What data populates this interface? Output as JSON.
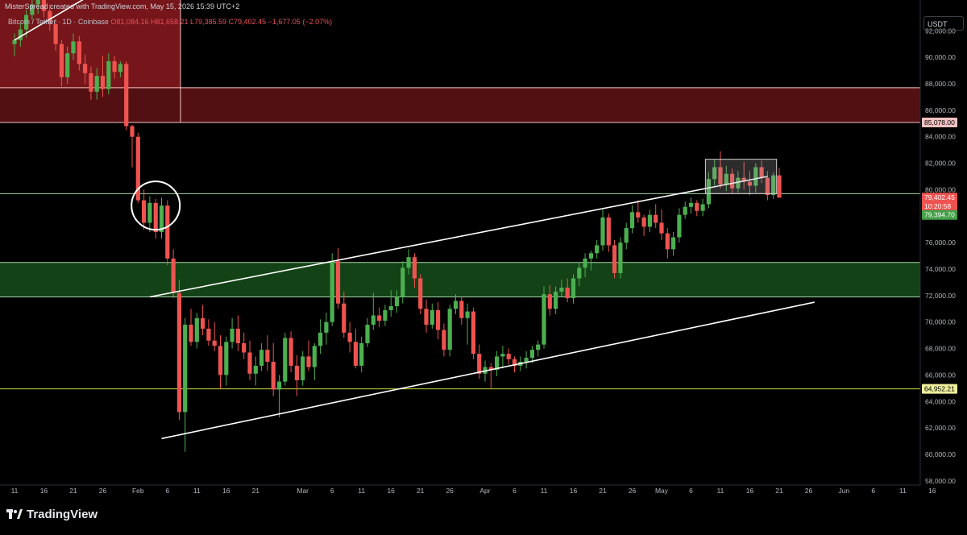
{
  "header": {
    "credit": "MisterSpread created with TradingView.com, May 15, 2026 15:39 UTC+2",
    "symbol": "Bitcoin / Tether · 1D · Coinbase",
    "ohlc": "O81,084.16 H81,658.21 L79,385.59 C79,402.45 −1,677.05 (−2.07%)"
  },
  "currency_button": "USDT",
  "brand": "TradingView",
  "colors": {
    "background": "#000000",
    "up": "#4caf50",
    "down": "#ef5350",
    "supply_zone": "#8b1a1f",
    "demand_zone": "#1b5e20",
    "level_line_red": "#f5c6c6",
    "level_line_green": "#a5d6a7",
    "level_line_yellow": "#cddc39",
    "trendline": "#ffffff"
  },
  "price_labels": {
    "resistance": "85,078.00",
    "last_close": "79,402.45",
    "countdown": "10:20:58",
    "bid": "79,394.70",
    "support": "64,952.21"
  },
  "chart_data": {
    "type": "candlestick",
    "title": "",
    "timeframe": "1D",
    "exchange": "Coinbase",
    "ylim": [
      57000,
      95500
    ],
    "y_ticks": [
      58000,
      60000,
      62000,
      64000,
      66000,
      68000,
      70000,
      72000,
      74000,
      76000,
      78000,
      80000,
      82000,
      84000,
      86000,
      88000,
      90000,
      92000
    ],
    "y_tick_labels": [
      "58,000.00",
      "60,000.00",
      "62,000.00",
      "64,000.00",
      "66,000.00",
      "68,000.00",
      "70,000.00",
      "72,000.00",
      "74,000.00",
      "76,000.00",
      "78,000.00",
      "80,000.00",
      "82,000.00",
      "84,000.00",
      "86,000.00",
      "88,000.00",
      "90,000.00",
      "92,000.00"
    ],
    "x_axis_labels": [
      {
        "day": 0,
        "text": "11"
      },
      {
        "day": 5,
        "text": "16"
      },
      {
        "day": 10,
        "text": "21"
      },
      {
        "day": 15,
        "text": "26"
      },
      {
        "day": 21,
        "text": "Feb"
      },
      {
        "day": 26,
        "text": "6"
      },
      {
        "day": 31,
        "text": "11"
      },
      {
        "day": 36,
        "text": "16"
      },
      {
        "day": 41,
        "text": "21"
      },
      {
        "day": 49,
        "text": "Mar"
      },
      {
        "day": 54,
        "text": "6"
      },
      {
        "day": 59,
        "text": "11"
      },
      {
        "day": 64,
        "text": "16"
      },
      {
        "day": 69,
        "text": "21"
      },
      {
        "day": 74,
        "text": "26"
      },
      {
        "day": 80,
        "text": "Apr"
      },
      {
        "day": 85,
        "text": "6"
      },
      {
        "day": 90,
        "text": "11"
      },
      {
        "day": 95,
        "text": "16"
      },
      {
        "day": 100,
        "text": "21"
      },
      {
        "day": 105,
        "text": "26"
      },
      {
        "day": 110,
        "text": "May"
      },
      {
        "day": 115,
        "text": "6"
      },
      {
        "day": 120,
        "text": "11"
      },
      {
        "day": 125,
        "text": "16"
      },
      {
        "day": 130,
        "text": "21"
      },
      {
        "day": 135,
        "text": "26"
      },
      {
        "day": 141,
        "text": "Jun"
      },
      {
        "day": 146,
        "text": "6"
      },
      {
        "day": 151,
        "text": "11"
      },
      {
        "day": 156,
        "text": "16"
      }
    ],
    "candles": [
      [
        0,
        91000,
        91800,
        90100,
        91300
      ],
      [
        1,
        91300,
        92600,
        90800,
        92100
      ],
      [
        2,
        92100,
        93600,
        91500,
        93200
      ],
      [
        3,
        93200,
        94600,
        92800,
        94000
      ],
      [
        4,
        94000,
        95300,
        93300,
        94600
      ],
      [
        5,
        94600,
        95200,
        93000,
        93500
      ],
      [
        6,
        93500,
        94000,
        92000,
        92500
      ],
      [
        7,
        92500,
        92900,
        90500,
        91000
      ],
      [
        8,
        91000,
        91300,
        87800,
        88500
      ],
      [
        9,
        88500,
        90800,
        88000,
        90300
      ],
      [
        10,
        90300,
        91800,
        89800,
        91200
      ],
      [
        11,
        91200,
        91600,
        89000,
        89500
      ],
      [
        12,
        89500,
        90200,
        88000,
        88800
      ],
      [
        13,
        88800,
        89300,
        86800,
        87400
      ],
      [
        14,
        87400,
        89200,
        86800,
        88600
      ],
      [
        15,
        88600,
        90100,
        87000,
        87600
      ],
      [
        16,
        87600,
        90300,
        87200,
        89700
      ],
      [
        17,
        89700,
        90100,
        88400,
        88900
      ],
      [
        18,
        88900,
        89700,
        88500,
        89500
      ],
      [
        19,
        89500,
        89700,
        84500,
        84800
      ],
      [
        20,
        84800,
        84900,
        81700,
        84000
      ],
      [
        21,
        84000,
        84300,
        79000,
        79200
      ],
      [
        22,
        79200,
        80000,
        77000,
        77500
      ],
      [
        23,
        77500,
        79500,
        76800,
        79000
      ],
      [
        24,
        79000,
        79300,
        76300,
        76800
      ],
      [
        25,
        76800,
        79400,
        76300,
        78800
      ],
      [
        26,
        78800,
        79200,
        74300,
        74800
      ],
      [
        27,
        74800,
        75500,
        71800,
        72200
      ],
      [
        28,
        72200,
        73200,
        62600,
        63200
      ],
      [
        29,
        63200,
        70300,
        60200,
        69800
      ],
      [
        30,
        69800,
        71000,
        68200,
        68500
      ],
      [
        31,
        68500,
        70700,
        68000,
        70300
      ],
      [
        32,
        70300,
        71300,
        69000,
        69500
      ],
      [
        33,
        69500,
        70200,
        68200,
        68600
      ],
      [
        34,
        68600,
        70000,
        67800,
        68200
      ],
      [
        35,
        68200,
        69000,
        65000,
        66000
      ],
      [
        36,
        66000,
        68900,
        65200,
        68500
      ],
      [
        37,
        68500,
        70300,
        68000,
        69500
      ],
      [
        38,
        69500,
        70500,
        67800,
        68400
      ],
      [
        39,
        68400,
        69200,
        67200,
        67700
      ],
      [
        40,
        67700,
        68600,
        65600,
        66100
      ],
      [
        41,
        66100,
        67400,
        65200,
        66700
      ],
      [
        42,
        66700,
        68400,
        66300,
        67900
      ],
      [
        43,
        67900,
        69000,
        66300,
        67000
      ],
      [
        44,
        67000,
        68400,
        64400,
        64900
      ],
      [
        45,
        64900,
        66000,
        62800,
        65500
      ],
      [
        46,
        65500,
        69200,
        65200,
        68800
      ],
      [
        47,
        68800,
        69300,
        66200,
        66700
      ],
      [
        48,
        66700,
        67500,
        64400,
        65600
      ],
      [
        49,
        65600,
        67800,
        65200,
        67400
      ],
      [
        50,
        67400,
        68600,
        66300,
        66600
      ],
      [
        51,
        66600,
        68400,
        65600,
        68200
      ],
      [
        52,
        68200,
        70200,
        67600,
        69200
      ],
      [
        53,
        69200,
        70700,
        68300,
        70000
      ],
      [
        54,
        70000,
        75200,
        69700,
        74600
      ],
      [
        55,
        74600,
        75600,
        71000,
        71400
      ],
      [
        56,
        71400,
        72300,
        68800,
        69200
      ],
      [
        57,
        69200,
        70000,
        67700,
        68500
      ],
      [
        58,
        68500,
        69500,
        66500,
        66700
      ],
      [
        59,
        66700,
        68900,
        66200,
        68400
      ],
      [
        60,
        68400,
        70300,
        68100,
        69800
      ],
      [
        61,
        69800,
        72200,
        69400,
        70500
      ],
      [
        62,
        70500,
        71100,
        69600,
        70100
      ],
      [
        63,
        70100,
        71300,
        69700,
        70900
      ],
      [
        64,
        70900,
        72400,
        70400,
        71200
      ],
      [
        65,
        71200,
        72400,
        70700,
        71900
      ],
      [
        66,
        71900,
        74600,
        71400,
        74100
      ],
      [
        67,
        74100,
        75500,
        73600,
        74900
      ],
      [
        68,
        74900,
        75200,
        72600,
        73300
      ],
      [
        69,
        73300,
        73600,
        70600,
        71000
      ],
      [
        70,
        71000,
        71700,
        69200,
        69800
      ],
      [
        71,
        69800,
        71400,
        69500,
        70900
      ],
      [
        72,
        70900,
        71500,
        68700,
        69400
      ],
      [
        73,
        69400,
        69900,
        67400,
        67900
      ],
      [
        74,
        67900,
        71300,
        67400,
        71000
      ],
      [
        75,
        71000,
        72100,
        70600,
        71600
      ],
      [
        76,
        71600,
        71900,
        69800,
        70300
      ],
      [
        77,
        70300,
        71400,
        68300,
        70800
      ],
      [
        78,
        70800,
        71100,
        67200,
        67600
      ],
      [
        79,
        67600,
        68300,
        65700,
        66100
      ],
      [
        80,
        66100,
        67100,
        65500,
        66600
      ],
      [
        81,
        66600,
        66900,
        65000,
        66400
      ],
      [
        82,
        66400,
        67800,
        65900,
        67400
      ],
      [
        83,
        67400,
        68200,
        66500,
        67600
      ],
      [
        84,
        67600,
        68000,
        66800,
        67200
      ],
      [
        85,
        67200,
        67400,
        66200,
        66700
      ],
      [
        86,
        66700,
        67400,
        66300,
        67000
      ],
      [
        87,
        67000,
        67800,
        66500,
        67300
      ],
      [
        88,
        67300,
        68200,
        66900,
        67900
      ],
      [
        89,
        67900,
        68600,
        67400,
        68300
      ],
      [
        90,
        68300,
        72700,
        68000,
        72100
      ],
      [
        91,
        72100,
        72800,
        70500,
        71000
      ],
      [
        92,
        71000,
        72700,
        70600,
        72300
      ],
      [
        93,
        72300,
        73200,
        71900,
        72600
      ],
      [
        94,
        72600,
        73300,
        71500,
        71800
      ],
      [
        95,
        71800,
        73600,
        71400,
        73300
      ],
      [
        96,
        73300,
        74500,
        72700,
        74100
      ],
      [
        97,
        74100,
        75200,
        73400,
        74800
      ],
      [
        98,
        74800,
        75400,
        73900,
        75200
      ],
      [
        99,
        75200,
        76200,
        74800,
        75800
      ],
      [
        100,
        75800,
        78500,
        75400,
        77900
      ],
      [
        101,
        77900,
        78200,
        75300,
        75800
      ],
      [
        102,
        75800,
        76200,
        73300,
        73700
      ],
      [
        103,
        73700,
        76400,
        73300,
        76000
      ],
      [
        104,
        76000,
        77500,
        75500,
        77100
      ],
      [
        105,
        77100,
        78800,
        76700,
        78300
      ],
      [
        106,
        78300,
        79200,
        77500,
        77900
      ],
      [
        107,
        77900,
        78100,
        76500,
        77200
      ],
      [
        108,
        77200,
        78500,
        76800,
        78100
      ],
      [
        109,
        78100,
        78900,
        77100,
        77500
      ],
      [
        110,
        77500,
        78500,
        76200,
        76700
      ],
      [
        111,
        76700,
        77100,
        74800,
        75500
      ],
      [
        112,
        75500,
        76800,
        75000,
        76400
      ],
      [
        113,
        76400,
        78600,
        76000,
        78100
      ],
      [
        114,
        78100,
        79100,
        77800,
        78700
      ],
      [
        115,
        78700,
        79400,
        78200,
        79000
      ],
      [
        116,
        79000,
        79200,
        78000,
        78400
      ],
      [
        117,
        78400,
        79300,
        78000,
        78900
      ],
      [
        118,
        78900,
        81300,
        78600,
        80800
      ],
      [
        119,
        80800,
        82300,
        80300,
        81700
      ],
      [
        120,
        81700,
        82900,
        80100,
        80400
      ],
      [
        121,
        80400,
        81800,
        79900,
        81200
      ],
      [
        122,
        81200,
        81600,
        79700,
        80100
      ],
      [
        123,
        80100,
        81400,
        79800,
        80900
      ],
      [
        124,
        80900,
        82100,
        80000,
        80600
      ],
      [
        125,
        80600,
        81400,
        79600,
        80300
      ],
      [
        126,
        80300,
        82000,
        79800,
        81700
      ],
      [
        127,
        81700,
        82200,
        80500,
        80900
      ],
      [
        128,
        80900,
        81400,
        79200,
        79600
      ],
      [
        129,
        79600,
        81300,
        79300,
        81084
      ],
      [
        130,
        81084,
        81658,
        79386,
        79402
      ]
    ],
    "annotations": {
      "resistance_level": 85078.0,
      "support_level": 64952.21,
      "supply_zone": [
        85078,
        87700
      ],
      "supply_zone_upper_left": [
        87700,
        95500
      ],
      "demand_zone": [
        71900,
        74500
      ],
      "level_80000_line": 79700,
      "consolidation_box": {
        "from_day": 118,
        "to_day": 129,
        "low": 79700,
        "high": 82300
      },
      "channel_upper": {
        "from": [
          23,
          71900
        ],
        "to": [
          113,
          79800
        ],
        "ext_to": [
          128,
          81000
        ]
      },
      "channel_lower": {
        "from": [
          25,
          61200
        ],
        "to": [
          136,
          71500
        ]
      },
      "old_trendline": {
        "from": [
          0,
          91300
        ],
        "to": [
          16,
          95500
        ]
      },
      "circle_marker": {
        "day": 24,
        "price": 78800
      }
    }
  }
}
